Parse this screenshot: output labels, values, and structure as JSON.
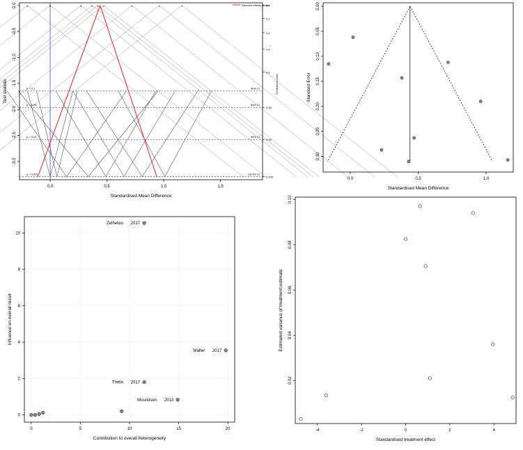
{
  "chart_data": [
    {
      "type": "line",
      "panel": "galbraith-confidence-plot",
      "xlabel": "Standardised Mean Difference",
      "ylabel": "Test statistic",
      "ylabel_right": "Confidence level",
      "xlim": [
        -0.27,
        1.87
      ],
      "ylim": [
        -3.35,
        0.05
      ],
      "xticks": [
        "0.0",
        "0.5",
        "1.0",
        "1.5"
      ],
      "xtick_values": [
        0,
        0.5,
        1,
        1.5
      ],
      "yticks": [
        "0.0",
        "-0.5",
        "-1.0",
        "-1.5",
        "-2.0",
        "-2.5",
        "-3.0"
      ],
      "ytick_values": [
        0,
        -0.5,
        -1,
        -1.5,
        -2,
        -2.5,
        -3
      ],
      "conf_ticks": [
        "0.0",
        "0.2",
        "0.4",
        "0.6",
        "0.8",
        "0.95",
        "0.99",
        "0.999"
      ],
      "conf_values": [
        0,
        0.2,
        0.4,
        0.6,
        0.8,
        0.95,
        0.99,
        0.999
      ],
      "legend": "Random effects model",
      "legend_position": "top-right",
      "pooled": 0.44,
      "sig_lines": [
        {
          "p_label": "p = 0.1",
          "ci_label": "90% CI",
          "t": -1.645
        },
        {
          "p_label": "p = 0.05",
          "ci_label": "95% CI",
          "t": -1.96
        },
        {
          "p_label": "p = 0.01",
          "ci_label": "99% CI",
          "t": -2.576
        },
        {
          "p_label": "p = 0.001",
          "ci_label": "99.9% CI",
          "t": -3.29
        }
      ],
      "study_labels": [
        {
          "text": "8",
          "x": -0.2
        },
        {
          "text": "6",
          "x": 0.0
        },
        {
          "text": "3",
          "x": 0.27
        },
        {
          "text": "4",
          "x": 0.37
        },
        {
          "text": "5",
          "x": 0.42
        },
        {
          "text": "2",
          "x": 0.47
        },
        {
          "text": "9",
          "x": 0.72
        },
        {
          "text": "1",
          "x": 0.96
        },
        {
          "text": "7",
          "x": 1.16
        }
      ],
      "study_lines": [
        {
          "left": -0.2,
          "right": 0.2
        },
        {
          "left": -0.12,
          "right": 0.24
        },
        {
          "left": -0.38,
          "right": 0.67
        },
        {
          "left": 0.05,
          "right": 0.93
        },
        {
          "left": 0.2,
          "right": 1.1
        },
        {
          "left": 0.32,
          "right": 1.3
        },
        {
          "left": 0.6,
          "right": 1.42
        },
        {
          "left": -0.28,
          "right": 0.95
        }
      ]
    },
    {
      "type": "scatter",
      "panel": "funnel-plot",
      "xlabel": "Standardised Mean Difference",
      "ylabel": "Standard Error",
      "xlim": [
        -0.2,
        1.2
      ],
      "ylim": [
        0.32,
        0.0
      ],
      "xticks": [
        "0.0",
        "0.5",
        "1.0"
      ],
      "xtick_values": [
        0,
        0.5,
        1
      ],
      "yticks": [
        "0.00",
        "0.05",
        "0.10",
        "0.15",
        "0.20",
        "0.25",
        "0.30"
      ],
      "ytick_values": [
        0,
        0.05,
        0.1,
        0.15,
        0.2,
        0.25,
        0.3
      ],
      "pooled": 0.44,
      "funnel_se_max": 0.31,
      "points": [
        {
          "x": -0.16,
          "y": 0.115
        },
        {
          "x": 0.02,
          "y": 0.062
        },
        {
          "x": 0.23,
          "y": 0.287
        },
        {
          "x": 0.38,
          "y": 0.143
        },
        {
          "x": 0.43,
          "y": 0.31
        },
        {
          "x": 0.47,
          "y": 0.263
        },
        {
          "x": 0.72,
          "y": 0.112
        },
        {
          "x": 0.96,
          "y": 0.19
        },
        {
          "x": 1.16,
          "y": 0.307
        }
      ]
    },
    {
      "type": "scatter",
      "panel": "baujat-plot",
      "xlabel": "Contribution to overall heterogeneity",
      "ylabel": "Influence on overall result",
      "xlim": [
        -0.7,
        20.7
      ],
      "ylim": [
        -0.4,
        10.9
      ],
      "grid": true,
      "xticks": [
        "0",
        "5",
        "10",
        "15",
        "20"
      ],
      "xtick_values": [
        0,
        5,
        10,
        15,
        20
      ],
      "yticks": [
        "0",
        "2",
        "4",
        "6",
        "8",
        "10"
      ],
      "ytick_values": [
        0,
        2,
        4,
        6,
        8,
        10
      ],
      "points": [
        {
          "x": 0.0,
          "y": 0.0,
          "label": ""
        },
        {
          "x": 0.4,
          "y": 0.0,
          "label": ""
        },
        {
          "x": 0.8,
          "y": 0.05,
          "label": ""
        },
        {
          "x": 1.2,
          "y": 0.12,
          "label": ""
        },
        {
          "x": 9.2,
          "y": 0.2,
          "label": ""
        },
        {
          "x": 11.5,
          "y": 10.55,
          "label": "Zethelius",
          "year": "2017"
        },
        {
          "x": 19.8,
          "y": 3.55,
          "label": "Walter",
          "year": "2017"
        },
        {
          "x": 11.5,
          "y": 1.8,
          "label": "Thelin",
          "year": "2017"
        },
        {
          "x": 14.9,
          "y": 0.83,
          "label": "Mouridsen",
          "year": "2013"
        }
      ]
    },
    {
      "type": "scatter",
      "panel": "treatment-effect-plot",
      "xlabel": "Standardised treatment effect",
      "ylabel": "Estimated variance of treatment estimate",
      "xlim": [
        -5.0,
        5.0
      ],
      "ylim": [
        0.001,
        0.101
      ],
      "xticks": [
        "-4",
        "-2",
        "0",
        "2",
        "4"
      ],
      "xtick_values": [
        -4,
        -2,
        0,
        2,
        4
      ],
      "yticks": [
        "0.02",
        "0.04",
        "0.06",
        "0.08",
        "0.10"
      ],
      "ytick_values": [
        0.02,
        0.04,
        0.06,
        0.08,
        0.1
      ],
      "points": [
        {
          "x": -4.75,
          "y": 0.003
        },
        {
          "x": -3.6,
          "y": 0.0135
        },
        {
          "x": 0.0,
          "y": 0.0825
        },
        {
          "x": 0.65,
          "y": 0.097
        },
        {
          "x": 0.9,
          "y": 0.0705
        },
        {
          "x": 1.1,
          "y": 0.021
        },
        {
          "x": 3.05,
          "y": 0.094
        },
        {
          "x": 3.95,
          "y": 0.036
        },
        {
          "x": 4.85,
          "y": 0.0125
        }
      ]
    }
  ]
}
